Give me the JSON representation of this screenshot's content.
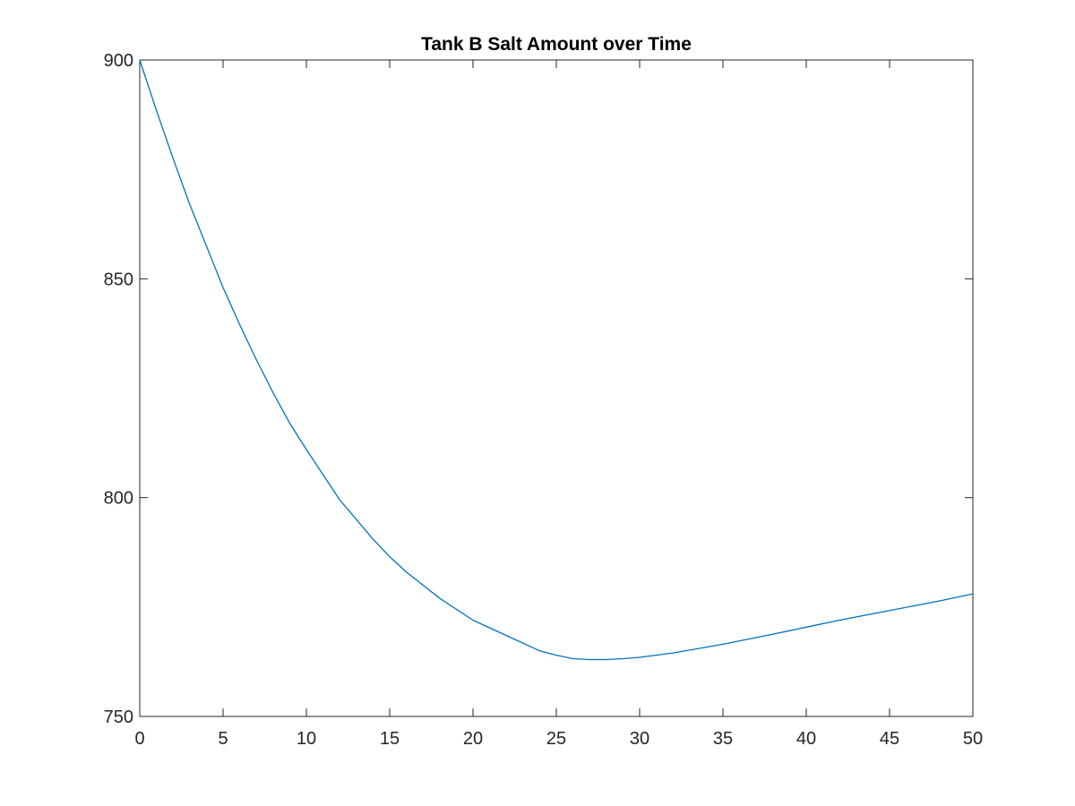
{
  "chart_data": {
    "type": "line",
    "title": "Tank B Salt Amount over Time",
    "xlabel": "",
    "ylabel": "",
    "xlim": [
      0,
      50
    ],
    "ylim": [
      750,
      900
    ],
    "xticks": [
      "0",
      "5",
      "10",
      "15",
      "20",
      "25",
      "30",
      "35",
      "40",
      "45",
      "50"
    ],
    "yticks": [
      "750",
      "800",
      "850",
      "900"
    ],
    "grid": false,
    "legend": "none",
    "series": [
      {
        "color": "#0072BD",
        "x": [
          0,
          1,
          2,
          3,
          4,
          5,
          6,
          7,
          8,
          9,
          10,
          12,
          14,
          15,
          16,
          18,
          20,
          22,
          24,
          25,
          26,
          27,
          28,
          29,
          30,
          32,
          35,
          38,
          40,
          42,
          45,
          48,
          50
        ],
        "y": [
          900,
          888.5,
          877.5,
          867,
          857.5,
          848,
          839.5,
          831.5,
          824,
          817,
          811,
          799.5,
          790.5,
          786.5,
          783,
          777,
          772,
          768.5,
          765,
          764,
          763.2,
          763,
          763,
          763.2,
          763.5,
          764.5,
          766.5,
          768.8,
          770.4,
          772,
          774.2,
          776.4,
          778
        ]
      }
    ]
  }
}
